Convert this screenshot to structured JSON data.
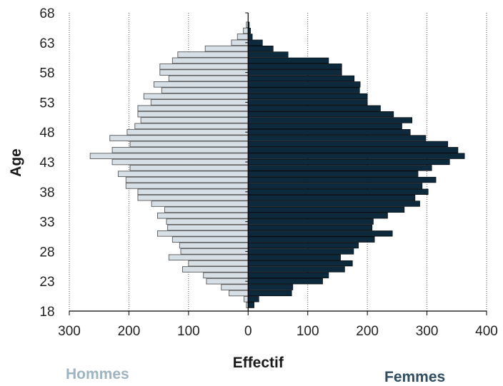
{
  "chart_data": {
    "type": "bar",
    "orientation": "horizontal",
    "subtype": "population pyramid",
    "xlabel": "Effectif",
    "ylabel": "Age",
    "xlim": [
      -300,
      400
    ],
    "ylim": [
      18,
      68
    ],
    "x_ticks": [
      -300,
      -200,
      -100,
      0,
      100,
      200,
      300,
      400
    ],
    "x_tick_labels": [
      "300",
      "200",
      "100",
      "0",
      "100",
      "200",
      "300",
      "400"
    ],
    "y_ticks": [
      18,
      23,
      28,
      33,
      38,
      43,
      48,
      53,
      58,
      63,
      68
    ],
    "grid": "vertical dotted",
    "ages": [
      19,
      20,
      21,
      22,
      23,
      24,
      25,
      26,
      27,
      28,
      29,
      30,
      31,
      32,
      33,
      34,
      35,
      36,
      37,
      38,
      39,
      40,
      41,
      42,
      43,
      44,
      45,
      46,
      47,
      48,
      49,
      50,
      51,
      52,
      53,
      54,
      55,
      56,
      57,
      58,
      59,
      60,
      61,
      62,
      63,
      64,
      65,
      66,
      67
    ],
    "series": [
      {
        "name": "Hommes",
        "color": "#d5dfe5",
        "values": [
          3,
          7,
          32,
          45,
          70,
          75,
          110,
          100,
          133,
          113,
          115,
          127,
          152,
          135,
          137,
          152,
          140,
          162,
          185,
          185,
          205,
          205,
          218,
          198,
          228,
          265,
          228,
          198,
          232,
          203,
          190,
          180,
          185,
          185,
          163,
          175,
          145,
          158,
          133,
          148,
          148,
          127,
          118,
          72,
          28,
          18,
          8,
          3,
          0
        ]
      },
      {
        "name": "Femmes",
        "color": "#0d2a3c",
        "values": [
          10,
          18,
          73,
          75,
          125,
          135,
          162,
          175,
          155,
          177,
          185,
          212,
          242,
          208,
          210,
          234,
          262,
          288,
          280,
          302,
          292,
          315,
          285,
          308,
          338,
          363,
          352,
          335,
          298,
          272,
          258,
          275,
          244,
          222,
          200,
          200,
          187,
          188,
          178,
          157,
          157,
          135,
          67,
          42,
          24,
          7,
          4,
          2,
          0
        ]
      }
    ]
  }
}
